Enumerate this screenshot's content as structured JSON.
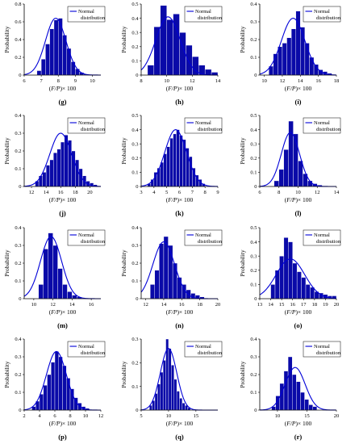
{
  "colors": {
    "bar": "#0a0aa8",
    "curve": "#0000d8"
  },
  "chart_data": [
    {
      "panel": "(g)",
      "type": "bar",
      "xlabel_pre": "(",
      "xlabel_var": "F/P",
      "xlabel_post": ")× 100",
      "ylabel": "Probability",
      "legend": "Normal distribution",
      "xlim": [
        6,
        10.5
      ],
      "ylim": [
        0,
        0.8
      ],
      "xticks": [
        6,
        7,
        8,
        9,
        10
      ],
      "yticks": [
        0,
        0.2,
        0.4,
        0.6,
        0.8
      ],
      "ytick_labels": [
        "0",
        "0.2",
        "0.4",
        "0.6",
        "0.8"
      ],
      "bar_start": 6.75,
      "bin_width": 0.25,
      "values": [
        0.05,
        0.18,
        0.35,
        0.52,
        0.62,
        0.64,
        0.45,
        0.3,
        0.15,
        0.07,
        0.03,
        0.01
      ],
      "curve": {
        "mean": 7.85,
        "sd": 0.6,
        "peak": 0.64
      }
    },
    {
      "panel": "(h)",
      "type": "bar",
      "xlabel_pre": "(",
      "xlabel_var": "F/P",
      "xlabel_post": ")× 100",
      "ylabel": "Probability",
      "legend": "Normal distribution",
      "xlim": [
        8,
        14
      ],
      "ylim": [
        0,
        0.5
      ],
      "xticks": [
        8,
        10,
        12,
        14
      ],
      "yticks": [
        0,
        0.1,
        0.2,
        0.3,
        0.4,
        0.5
      ],
      "ytick_labels": [
        "0",
        "0.1",
        "0.2",
        "0.3",
        "0.4",
        "0.5"
      ],
      "bar_start": 8.5,
      "bin_width": 0.5,
      "values": [
        0.07,
        0.34,
        0.49,
        0.39,
        0.43,
        0.3,
        0.21,
        0.13,
        0.07,
        0.04,
        0.02,
        0.01
      ],
      "curve": {
        "mean": 10.1,
        "sd": 0.95,
        "peak": 0.41
      }
    },
    {
      "panel": "(i)",
      "type": "bar",
      "xlabel_pre": "(",
      "xlabel_var": "F/P",
      "xlabel_post": ")× 100",
      "ylabel": "Probability",
      "legend": "Normal distribution",
      "xlim": [
        9.5,
        18
      ],
      "ylim": [
        0,
        0.4
      ],
      "xticks": [
        10,
        12,
        14,
        16,
        18
      ],
      "yticks": [
        0,
        0.1,
        0.2,
        0.3,
        0.4
      ],
      "ytick_labels": [
        "0",
        "0.1",
        "0.2",
        "0.3",
        "0.4"
      ],
      "bar_start": 10.5,
      "bin_width": 0.5,
      "values": [
        0.05,
        0.12,
        0.16,
        0.18,
        0.21,
        0.26,
        0.36,
        0.27,
        0.18,
        0.1,
        0.06,
        0.03,
        0.02,
        0.01
      ],
      "curve": {
        "mean": 13.2,
        "sd": 1.3,
        "peak": 0.32
      }
    },
    {
      "panel": "(j)",
      "type": "bar",
      "xlabel_pre": "(",
      "xlabel_var": "F/P",
      "xlabel_post": ")× 100",
      "ylabel": "Probability",
      "legend": "Normal distribution",
      "xlim": [
        11,
        21.5
      ],
      "ylim": [
        0,
        0.4
      ],
      "xticks": [
        12,
        14,
        16,
        18,
        20
      ],
      "yticks": [
        0,
        0.1,
        0.2,
        0.3,
        0.4
      ],
      "ytick_labels": [
        "0",
        "0.1",
        "0.2",
        "0.3",
        "0.4"
      ],
      "bar_start": 12.5,
      "bin_width": 0.5,
      "values": [
        0.03,
        0.06,
        0.08,
        0.12,
        0.15,
        0.19,
        0.21,
        0.25,
        0.29,
        0.26,
        0.2,
        0.15,
        0.1,
        0.06,
        0.03,
        0.02,
        0.01
      ],
      "curve": {
        "mean": 16.0,
        "sd": 1.5,
        "peak": 0.3
      }
    },
    {
      "panel": "(k)",
      "type": "bar",
      "xlabel_pre": "(",
      "xlabel_var": "F/P",
      "xlabel_post": ")× 100",
      "ylabel": "Probability",
      "legend": "Normal distribution",
      "xlim": [
        3,
        9
      ],
      "ylim": [
        0,
        0.5
      ],
      "xticks": [
        3,
        4,
        5,
        6,
        7,
        8,
        9
      ],
      "yticks": [
        0,
        0.1,
        0.2,
        0.3,
        0.4,
        0.5
      ],
      "ytick_labels": [
        "0",
        "0.1",
        "0.2",
        "0.3",
        "0.4",
        "0.5"
      ],
      "bar_start": 3.5,
      "bin_width": 0.25,
      "values": [
        0.02,
        0.05,
        0.1,
        0.13,
        0.17,
        0.23,
        0.28,
        0.34,
        0.37,
        0.4,
        0.36,
        0.33,
        0.27,
        0.21,
        0.13,
        0.08,
        0.05,
        0.02
      ],
      "curve": {
        "mean": 5.7,
        "sd": 0.85,
        "peak": 0.4
      }
    },
    {
      "panel": "(l)",
      "type": "bar",
      "xlabel_pre": "(",
      "xlabel_var": "F/P",
      "xlabel_post": ")× 100",
      "ylabel": "Probability",
      "legend": "Normal distribution",
      "xlim": [
        6,
        14
      ],
      "ylim": [
        0,
        0.5
      ],
      "xticks": [
        6,
        8,
        10,
        12,
        14
      ],
      "yticks": [
        0,
        0.1,
        0.2,
        0.3,
        0.4,
        0.5
      ],
      "ytick_labels": [
        "0",
        "0.1",
        "0.2",
        "0.3",
        "0.4",
        "0.5"
      ],
      "bar_start": 7.5,
      "bin_width": 0.5,
      "values": [
        0.04,
        0.12,
        0.26,
        0.46,
        0.37,
        0.18,
        0.09,
        0.04,
        0.02,
        0.01
      ],
      "curve": {
        "mean": 9.2,
        "sd": 0.95,
        "peak": 0.38
      }
    },
    {
      "panel": "(m)",
      "type": "bar",
      "xlabel_pre": "(",
      "xlabel_var": "F/P",
      "xlabel_post": ")× 100",
      "ylabel": "Probability",
      "legend": "Normal distribution",
      "xlim": [
        9,
        17
      ],
      "ylim": [
        0,
        0.4
      ],
      "xticks": [
        10,
        12,
        14,
        16
      ],
      "yticks": [
        0,
        0.1,
        0.2,
        0.3,
        0.4
      ],
      "ytick_labels": [
        "0",
        "0.1",
        "0.2",
        "0.3",
        "0.4"
      ],
      "bar_start": 10.5,
      "bin_width": 0.5,
      "values": [
        0.08,
        0.28,
        0.37,
        0.3,
        0.17,
        0.08,
        0.04,
        0.02,
        0.01
      ],
      "curve": {
        "mean": 11.8,
        "sd": 1.1,
        "peak": 0.35
      }
    },
    {
      "panel": "(n)",
      "type": "bar",
      "xlabel_pre": "(",
      "xlabel_var": "F/P",
      "xlabel_post": ")× 100",
      "ylabel": "Probability",
      "legend": "Normal distribution",
      "xlim": [
        11.5,
        20
      ],
      "ylim": [
        0,
        0.4
      ],
      "xticks": [
        12,
        14,
        16,
        18,
        20
      ],
      "yticks": [
        0,
        0.1,
        0.2,
        0.3,
        0.4
      ],
      "ytick_labels": [
        "0",
        "0.1",
        "0.2",
        "0.3",
        "0.4"
      ],
      "bar_start": 12.5,
      "bin_width": 0.5,
      "values": [
        0.08,
        0.16,
        0.31,
        0.35,
        0.3,
        0.2,
        0.12,
        0.08,
        0.05,
        0.03,
        0.02,
        0.01
      ],
      "curve": {
        "mean": 14.0,
        "sd": 1.2,
        "peak": 0.32
      }
    },
    {
      "panel": "(o)",
      "type": "bar",
      "xlabel_pre": "(",
      "xlabel_var": "F/P",
      "xlabel_post": ")× 100",
      "ylabel": "Probability",
      "legend": "Normal distribution",
      "xlim": [
        13,
        20
      ],
      "ylim": [
        0,
        0.5
      ],
      "xticks": [
        13,
        14,
        15,
        16,
        17,
        18,
        19,
        20
      ],
      "yticks": [
        0,
        0.1,
        0.2,
        0.3,
        0.4,
        0.5
      ],
      "ytick_labels": [
        "0",
        "0.1",
        "0.2",
        "0.3",
        "0.4",
        "0.5"
      ],
      "bar_start": 14,
      "bin_width": 0.4,
      "values": [
        0.1,
        0.2,
        0.3,
        0.43,
        0.4,
        0.25,
        0.19,
        0.15,
        0.1,
        0.08,
        0.05,
        0.04,
        0.03,
        0.02,
        0.02
      ],
      "curve": {
        "mean": 15.8,
        "sd": 1.3,
        "peak": 0.28
      }
    },
    {
      "panel": "(p)",
      "type": "bar",
      "xlabel_pre": "(",
      "xlabel_var": "F/P",
      "xlabel_post": ")× 100",
      "ylabel": "Probability",
      "legend": "Normal distribution",
      "xlim": [
        2,
        12
      ],
      "ylim": [
        0,
        0.4
      ],
      "xticks": [
        2,
        4,
        6,
        8,
        10,
        12
      ],
      "yticks": [
        0,
        0.1,
        0.2,
        0.3,
        0.4
      ],
      "ytick_labels": [
        "0",
        "0.1",
        "0.2",
        "0.3",
        "0.4"
      ],
      "bar_start": 3,
      "bin_width": 0.5,
      "values": [
        0.02,
        0.05,
        0.09,
        0.14,
        0.2,
        0.27,
        0.33,
        0.3,
        0.25,
        0.18,
        0.12,
        0.07,
        0.04,
        0.02,
        0.01
      ],
      "curve": {
        "mean": 6.2,
        "sd": 1.3,
        "peak": 0.33
      }
    },
    {
      "panel": "(q)",
      "type": "bar",
      "xlabel_pre": "(",
      "xlabel_var": "F/P",
      "xlabel_post": ")× 100",
      "ylabel": "Probability",
      "legend": "Normal distribution",
      "xlim": [
        5,
        19
      ],
      "ylim": [
        0,
        0.3
      ],
      "xticks": [
        5,
        10,
        15
      ],
      "yticks": [
        0,
        0.1,
        0.2,
        0.3
      ],
      "ytick_labels": [
        "0",
        "0.1",
        "0.2",
        "0.3"
      ],
      "bar_start": 6.5,
      "bin_width": 0.5,
      "values": [
        0.02,
        0.04,
        0.07,
        0.11,
        0.16,
        0.21,
        0.3,
        0.26,
        0.19,
        0.13,
        0.08,
        0.05,
        0.03,
        0.02,
        0.01
      ],
      "curve": {
        "mean": 10.0,
        "sd": 1.5,
        "peak": 0.26
      }
    },
    {
      "panel": "(r)",
      "type": "bar",
      "xlabel_pre": "(",
      "xlabel_var": "F/P",
      "xlabel_post": ")× 100",
      "ylabel": "Probability",
      "legend": "Normal distribution",
      "xlim": [
        7,
        20
      ],
      "ylim": [
        0,
        0.4
      ],
      "xticks": [
        10,
        15,
        20
      ],
      "yticks": [
        0,
        0.1,
        0.2,
        0.3,
        0.4
      ],
      "ytick_labels": [
        "0",
        "0.1",
        "0.2",
        "0.3",
        "0.4"
      ],
      "bar_start": 9,
      "bin_width": 0.7,
      "values": [
        0.02,
        0.08,
        0.15,
        0.22,
        0.3,
        0.2,
        0.16,
        0.1,
        0.06,
        0.03,
        0.02
      ],
      "curve": {
        "mean": 13.0,
        "sd": 1.7,
        "peak": 0.24
      }
    }
  ]
}
